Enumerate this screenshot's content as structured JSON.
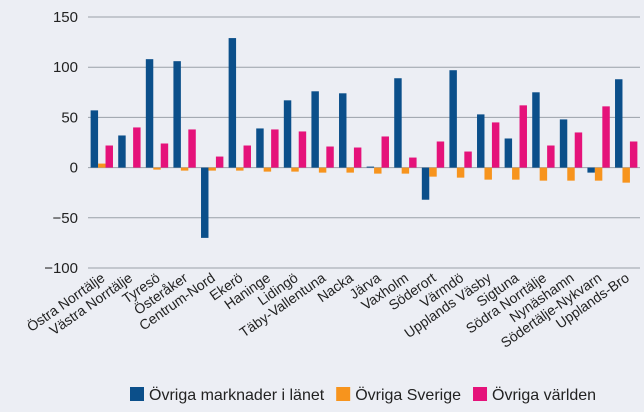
{
  "chart_data": {
    "type": "bar",
    "categories": [
      "Östra Norrtälje",
      "Västra Norrtälje",
      "Tyresö",
      "Österåker",
      "Centrum-Nord",
      "Ekerö",
      "Haninge",
      "Lidingö",
      "Täby-Vallentuna",
      "Nacka",
      "Järva",
      "Vaxholm",
      "Söderort",
      "Värmdö",
      "Upplands Väsby",
      "Sigtuna",
      "Södra Norrtälje",
      "Nynäshamn",
      "Södertälje-Nykvarn",
      "Upplands-Bro"
    ],
    "series": [
      {
        "name": "Övriga marknader i länet",
        "color": "#0b4f8a",
        "values": [
          57,
          32,
          108,
          106,
          -70,
          129,
          39,
          67,
          76,
          74,
          1,
          89,
          -32,
          97,
          53,
          29,
          75,
          48,
          -5,
          88
        ]
      },
      {
        "name": "Övriga Sverige",
        "color": "#f7941d",
        "values": [
          4,
          0,
          -2,
          -3,
          -3,
          -3,
          -4,
          -4,
          -5,
          -5,
          -6,
          -6,
          -9,
          -10,
          -12,
          -12,
          -13,
          -13,
          -13,
          -15
        ]
      },
      {
        "name": "Övriga världen",
        "color": "#e5127a",
        "values": [
          22,
          40,
          24,
          38,
          11,
          22,
          38,
          36,
          21,
          20,
          31,
          10,
          26,
          16,
          45,
          62,
          22,
          35,
          61,
          26
        ]
      }
    ],
    "ylim": [
      -100,
      150
    ],
    "yticks": [
      {
        "value": -100,
        "label": "−100"
      },
      {
        "value": -50,
        "label": "−50"
      },
      0,
      50,
      100,
      150
    ],
    "grid": true
  }
}
